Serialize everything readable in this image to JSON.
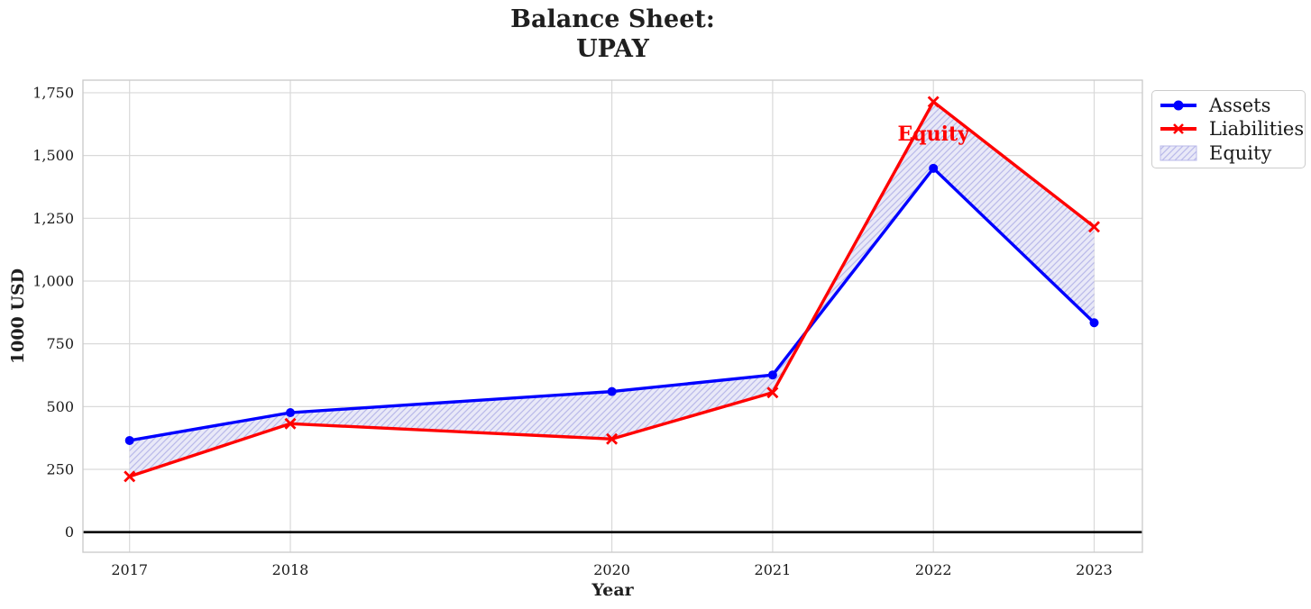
{
  "figure": {
    "title_lines": [
      "Balance Sheet:",
      "UPAY"
    ]
  },
  "legend": {
    "items": [
      {
        "label": "Assets"
      },
      {
        "label": "Liabilities"
      },
      {
        "label": "Equity"
      }
    ]
  },
  "chart_data": {
    "type": "line",
    "title": "Balance Sheet:\nUPAY",
    "xlabel": "Year",
    "ylabel": "1000 USD",
    "x": [
      2017,
      2018,
      2020,
      2021,
      2022,
      2023
    ],
    "series": [
      {
        "name": "Assets",
        "color": "#0000ff",
        "marker": "circle",
        "values": [
          365,
          476,
          560,
          626,
          1449,
          834
        ]
      },
      {
        "name": "Liabilities",
        "color": "#ff0000",
        "marker": "x",
        "values": [
          222,
          432,
          371,
          556,
          1714,
          1216
        ]
      }
    ],
    "fill_between": {
      "label": "Equity",
      "fill_color": "#e9e9f8",
      "hatch_color": "#b9b9ea",
      "hatch": "/"
    },
    "annotation": {
      "text": "Equity",
      "x": 2022,
      "y": 1560,
      "color": "#ff0000"
    },
    "xticks": {
      "values": [
        2017,
        2018,
        2020,
        2021,
        2022,
        2023
      ],
      "labels": [
        "2017",
        "2018",
        "2020",
        "2021",
        "2022",
        "2023"
      ]
    },
    "yticks": {
      "values": [
        0,
        250,
        500,
        750,
        1000,
        1250,
        1500,
        1750
      ],
      "labels": [
        "0",
        "250",
        "500",
        "750",
        "1,000",
        "1,250",
        "1,500",
        "1,750"
      ]
    },
    "xlim": [
      2016.71,
      2023.3
    ],
    "ylim": [
      -80,
      1800
    ],
    "grid": true,
    "grid_color": "#d9d9d9",
    "spine_color": "#cccccc",
    "tick_color": "#1a1a1a",
    "zero_line": true,
    "zero_line_color": "#000000",
    "legend_position": "outside-top-right"
  }
}
